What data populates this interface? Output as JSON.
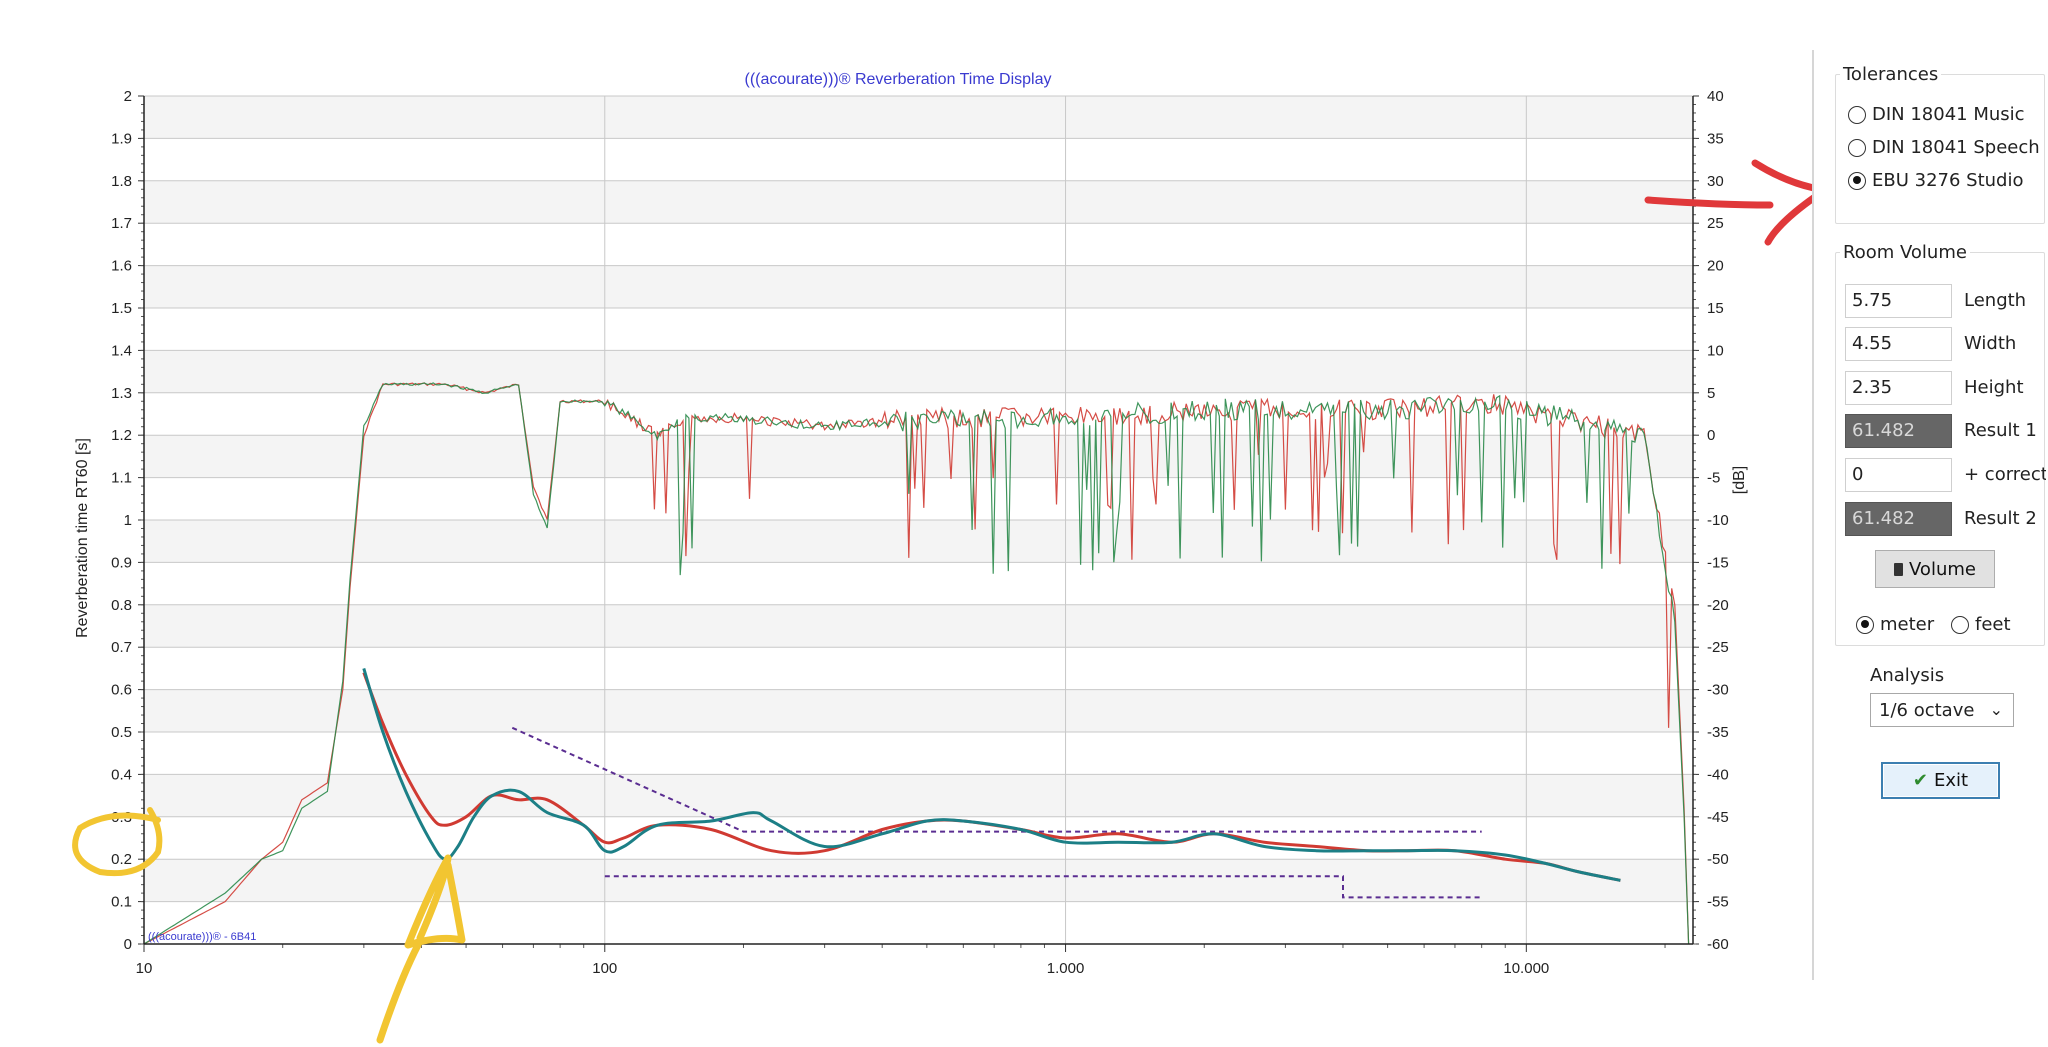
{
  "chart_data": {
    "type": "line",
    "title": "(((acourate)))® Reverberation Time Display",
    "watermark": "(((acourate)))® - 6B41",
    "ylabel": "Reverberation time RT60 [s]",
    "y2label": "[dB]",
    "x_scale": "log",
    "xlim": [
      10,
      23000
    ],
    "ylim": [
      0,
      2
    ],
    "y2lim": [
      -60,
      40
    ],
    "grid": true,
    "x_ticks": [
      "10",
      "100",
      "1.000",
      "10.000"
    ],
    "y_ticks": [
      "0",
      "0.1",
      "0.2",
      "0.3",
      "0.4",
      "0.5",
      "0.6",
      "0.7",
      "0.8",
      "0.9",
      "1",
      "1.1",
      "1.2",
      "1.3",
      "1.4",
      "1.5",
      "1.6",
      "1.7",
      "1.8",
      "1.9",
      "2"
    ],
    "y2_ticks": [
      "-60",
      "-55",
      "-50",
      "-45",
      "-40",
      "-35",
      "-30",
      "-25",
      "-20",
      "-15",
      "-10",
      "-5",
      "0",
      "5",
      "10",
      "15",
      "20",
      "25",
      "30",
      "35",
      "40"
    ],
    "series": [
      {
        "color": "#d03a32",
        "kind": "rt60",
        "x": [
          30,
          33,
          37,
          42,
          45,
          50,
          57,
          65,
          75,
          90,
          100,
          110,
          130,
          170,
          230,
          300,
          400,
          500,
          600,
          800,
          1000,
          1300,
          1700,
          2100,
          2700,
          3500,
          4500,
          5500,
          7000,
          9000,
          11000,
          13000,
          16000
        ],
        "y": [
          0.64,
          0.52,
          0.4,
          0.3,
          0.28,
          0.3,
          0.35,
          0.34,
          0.34,
          0.28,
          0.24,
          0.25,
          0.28,
          0.27,
          0.22,
          0.22,
          0.27,
          0.29,
          0.29,
          0.27,
          0.25,
          0.26,
          0.24,
          0.26,
          0.24,
          0.23,
          0.22,
          0.22,
          0.22,
          0.2,
          0.19,
          0.17,
          0.15
        ]
      },
      {
        "color": "#1c7f86",
        "kind": "rt60",
        "x": [
          30,
          33,
          37,
          42,
          45,
          48,
          52,
          57,
          65,
          75,
          90,
          100,
          110,
          130,
          170,
          210,
          230,
          300,
          400,
          500,
          600,
          800,
          1000,
          1300,
          1700,
          2100,
          2700,
          3500,
          4500,
          5500,
          7000,
          9000,
          11000,
          13000,
          16000
        ],
        "y": [
          0.65,
          0.5,
          0.36,
          0.24,
          0.2,
          0.23,
          0.3,
          0.35,
          0.36,
          0.31,
          0.28,
          0.22,
          0.23,
          0.28,
          0.29,
          0.31,
          0.29,
          0.23,
          0.26,
          0.29,
          0.29,
          0.27,
          0.24,
          0.24,
          0.24,
          0.26,
          0.23,
          0.22,
          0.22,
          0.22,
          0.22,
          0.21,
          0.19,
          0.17,
          0.15
        ]
      },
      {
        "color": "#d03a32",
        "kind": "spectrum_db",
        "x": [
          10,
          15,
          18,
          20,
          22,
          25,
          27,
          28,
          30,
          33,
          45,
          55,
          65,
          70,
          75,
          80,
          90,
          100,
          130,
          150,
          200,
          300,
          500,
          1000,
          2000,
          5000,
          8000,
          12000,
          18000,
          21000,
          22000,
          22500
        ],
        "y": [
          -60,
          -55,
          -50,
          -48,
          -43,
          -41,
          -30,
          -18,
          0,
          6,
          6,
          5,
          6,
          -6,
          -10,
          4,
          4,
          4,
          0,
          2,
          2,
          1,
          2,
          2,
          3,
          3,
          4,
          2,
          0,
          -20,
          -44,
          -60
        ]
      },
      {
        "color": "#2a8a4a",
        "kind": "spectrum_db",
        "x": [
          10,
          15,
          18,
          20,
          22,
          25,
          27,
          28,
          30,
          33,
          45,
          55,
          65,
          70,
          75,
          80,
          90,
          100,
          130,
          150,
          200,
          300,
          500,
          1000,
          2000,
          5000,
          8000,
          12000,
          18000,
          21000,
          22000,
          22500
        ],
        "y": [
          -60,
          -54,
          -50,
          -49,
          -44,
          -42,
          -29,
          -17,
          1,
          6,
          6,
          5,
          6,
          -7,
          -11,
          4,
          4,
          4,
          0,
          2,
          2,
          1,
          2,
          2,
          3,
          3,
          4,
          2,
          0,
          -22,
          -45,
          -60
        ]
      }
    ],
    "tolerance_upper": {
      "x": [
        63,
        200,
        8000
      ],
      "y": [
        0.51,
        0.265,
        0.265
      ]
    },
    "tolerance_lower": {
      "x": [
        100,
        4000,
        4000,
        8000
      ],
      "y": [
        0.16,
        0.16,
        0.11,
        0.11
      ]
    }
  },
  "panel": {
    "tolerances": {
      "legend": "Tolerances",
      "options": [
        {
          "label": "DIN 18041 Music",
          "checked": false
        },
        {
          "label": "DIN 18041 Speech",
          "checked": false
        },
        {
          "label": "EBU 3276 Studio",
          "checked": true
        }
      ]
    },
    "room_volume": {
      "legend": "Room Volume",
      "length_value": "5.75",
      "length_label": "Length",
      "width_value": "4.55",
      "width_label": "Width",
      "height_value": "2.35",
      "height_label": "Height",
      "result1_value": "61.482",
      "result1_label": "Result 1",
      "correct_value": "0",
      "correct_label": "+ correct",
      "result2_value": "61.482",
      "result2_label": "Result 2",
      "volume_button": "Volume",
      "unit_meter": "meter",
      "unit_feet": "feet",
      "unit_selected": "meter"
    },
    "analysis": {
      "label": "Analysis",
      "selected": "1/6 octave"
    },
    "exit_button": "Exit"
  },
  "annotation_colors": {
    "red_arrow": "#e0383a",
    "yellow_marks": "#f2c531"
  }
}
